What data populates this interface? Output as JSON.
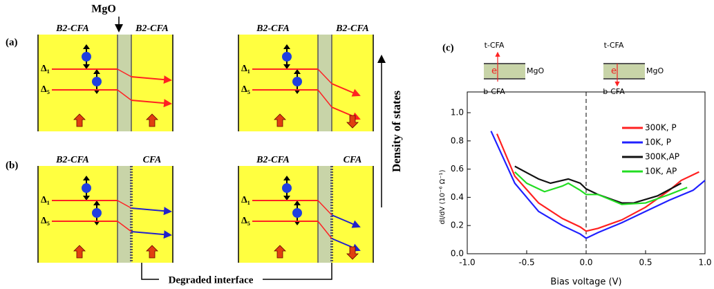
{
  "figure": {
    "mgo_label": "MgO",
    "panel_a": "(a)",
    "panel_b": "(b)",
    "density_label": "Density of states",
    "degraded_label": "Degraded interface",
    "boxes": [
      {
        "left": "B2-CFA",
        "right": "B2-CFA",
        "d1": "Δ₁",
        "d5": "Δ₅"
      },
      {
        "left": "B2-CFA",
        "right": "B2-CFA",
        "d1": "Δ₁",
        "d5": "Δ₅"
      },
      {
        "left": "B2-CFA",
        "right": "CFA",
        "d1": "Δ₁",
        "d5": "Δ₅"
      },
      {
        "left": "B2-CFA",
        "right": "CFA",
        "d1": "Δ₁",
        "d5": "Δ₅"
      }
    ],
    "inset": {
      "top_left": "t-CFA",
      "bottom_left": "b-CFA",
      "mgo_left": "MgO",
      "e_left": "e",
      "top_right": "t-CFA",
      "bottom_right": "b-CFA",
      "mgo_right": "MgO",
      "e_right": "e"
    }
  },
  "chart_data": {
    "type": "line",
    "panel_label": "(c)",
    "x_label": "Bias voltage (V)",
    "y_label": "dI/dV (10⁻⁶ Ω⁻¹)",
    "xlim": [
      -1.0,
      1.0
    ],
    "ylim": [
      0.0,
      1.0
    ],
    "xticks": [
      {
        "value": -1.0,
        "label": "-1.0"
      },
      {
        "value": -0.5,
        "label": "-0.5"
      },
      {
        "value": 0.0,
        "label": "0.0"
      },
      0.5,
      {
        "value": 1.0,
        "label": "1.0"
      }
    ],
    "yticks": [
      {
        "value": 0.0,
        "label": "0.0"
      },
      0.2,
      0.4,
      0.6,
      0.8,
      {
        "value": 1.0,
        "label": "1.0"
      }
    ],
    "series": [
      {
        "name": "300K, P",
        "color": "#ff2020",
        "x": [
          -0.75,
          -0.6,
          -0.4,
          -0.2,
          -0.05,
          0.0,
          0.1,
          0.3,
          0.5,
          0.7,
          0.8,
          0.95
        ],
        "values": [
          0.85,
          0.55,
          0.36,
          0.25,
          0.19,
          0.16,
          0.18,
          0.24,
          0.33,
          0.45,
          0.52,
          0.58
        ]
      },
      {
        "name": "10K, P",
        "color": "#2020ff",
        "x": [
          -0.8,
          -0.6,
          -0.4,
          -0.2,
          -0.05,
          0.0,
          0.1,
          0.3,
          0.5,
          0.7,
          0.9,
          1.0
        ],
        "values": [
          0.87,
          0.5,
          0.3,
          0.2,
          0.14,
          0.11,
          0.15,
          0.22,
          0.3,
          0.38,
          0.45,
          0.52
        ]
      },
      {
        "name": "300K,AP",
        "color": "#111111",
        "x": [
          -0.6,
          -0.4,
          -0.3,
          -0.15,
          -0.05,
          0.0,
          0.1,
          0.3,
          0.4,
          0.6,
          0.8
        ],
        "values": [
          0.62,
          0.53,
          0.5,
          0.53,
          0.5,
          0.46,
          0.42,
          0.36,
          0.36,
          0.41,
          0.5
        ]
      },
      {
        "name": "10K, AP",
        "color": "#22dd22",
        "x": [
          -0.6,
          -0.5,
          -0.35,
          -0.2,
          -0.15,
          -0.05,
          0.0,
          0.1,
          0.3,
          0.5,
          0.7,
          0.85
        ],
        "values": [
          0.58,
          0.5,
          0.44,
          0.48,
          0.5,
          0.45,
          0.42,
          0.42,
          0.35,
          0.36,
          0.42,
          0.47
        ]
      }
    ]
  }
}
